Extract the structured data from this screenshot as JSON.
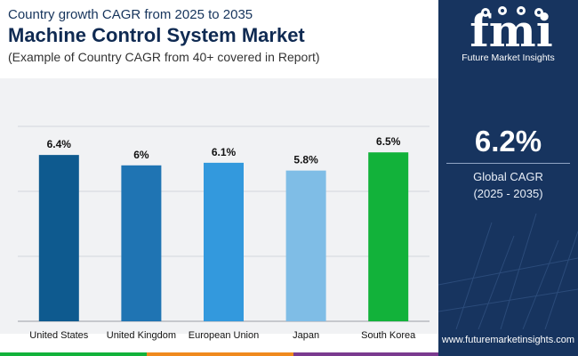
{
  "header": {
    "subtitle": "Country growth CAGR from 2025 to 2035",
    "title": "Machine Control System Market",
    "example": "(Example of Country CAGR from 40+ covered in Report)"
  },
  "brand": {
    "logo_letters": "fmi",
    "name": "Future Market Insights",
    "website": "www.futuremarketinsights.com",
    "panel_color": "#17345f"
  },
  "summary": {
    "value": "6.2%",
    "label": "Global CAGR",
    "period": "(2025 - 2035)"
  },
  "chart_data": {
    "type": "bar",
    "categories": [
      "United States",
      "United Kingdom",
      "European Union",
      "Japan",
      "South Korea"
    ],
    "values": [
      6.4,
      6.0,
      6.1,
      5.8,
      6.5
    ],
    "data_labels": [
      "6.4%",
      "6%",
      "6.1%",
      "5.8%",
      "6.5%"
    ],
    "colors": [
      "#0e5a8f",
      "#1f74b3",
      "#3399dd",
      "#7fbde6",
      "#12b23a"
    ],
    "title": "Machine Control System Market",
    "xlabel": "",
    "ylabel": "",
    "ylim": [
      0,
      7.5
    ],
    "grid": true
  }
}
